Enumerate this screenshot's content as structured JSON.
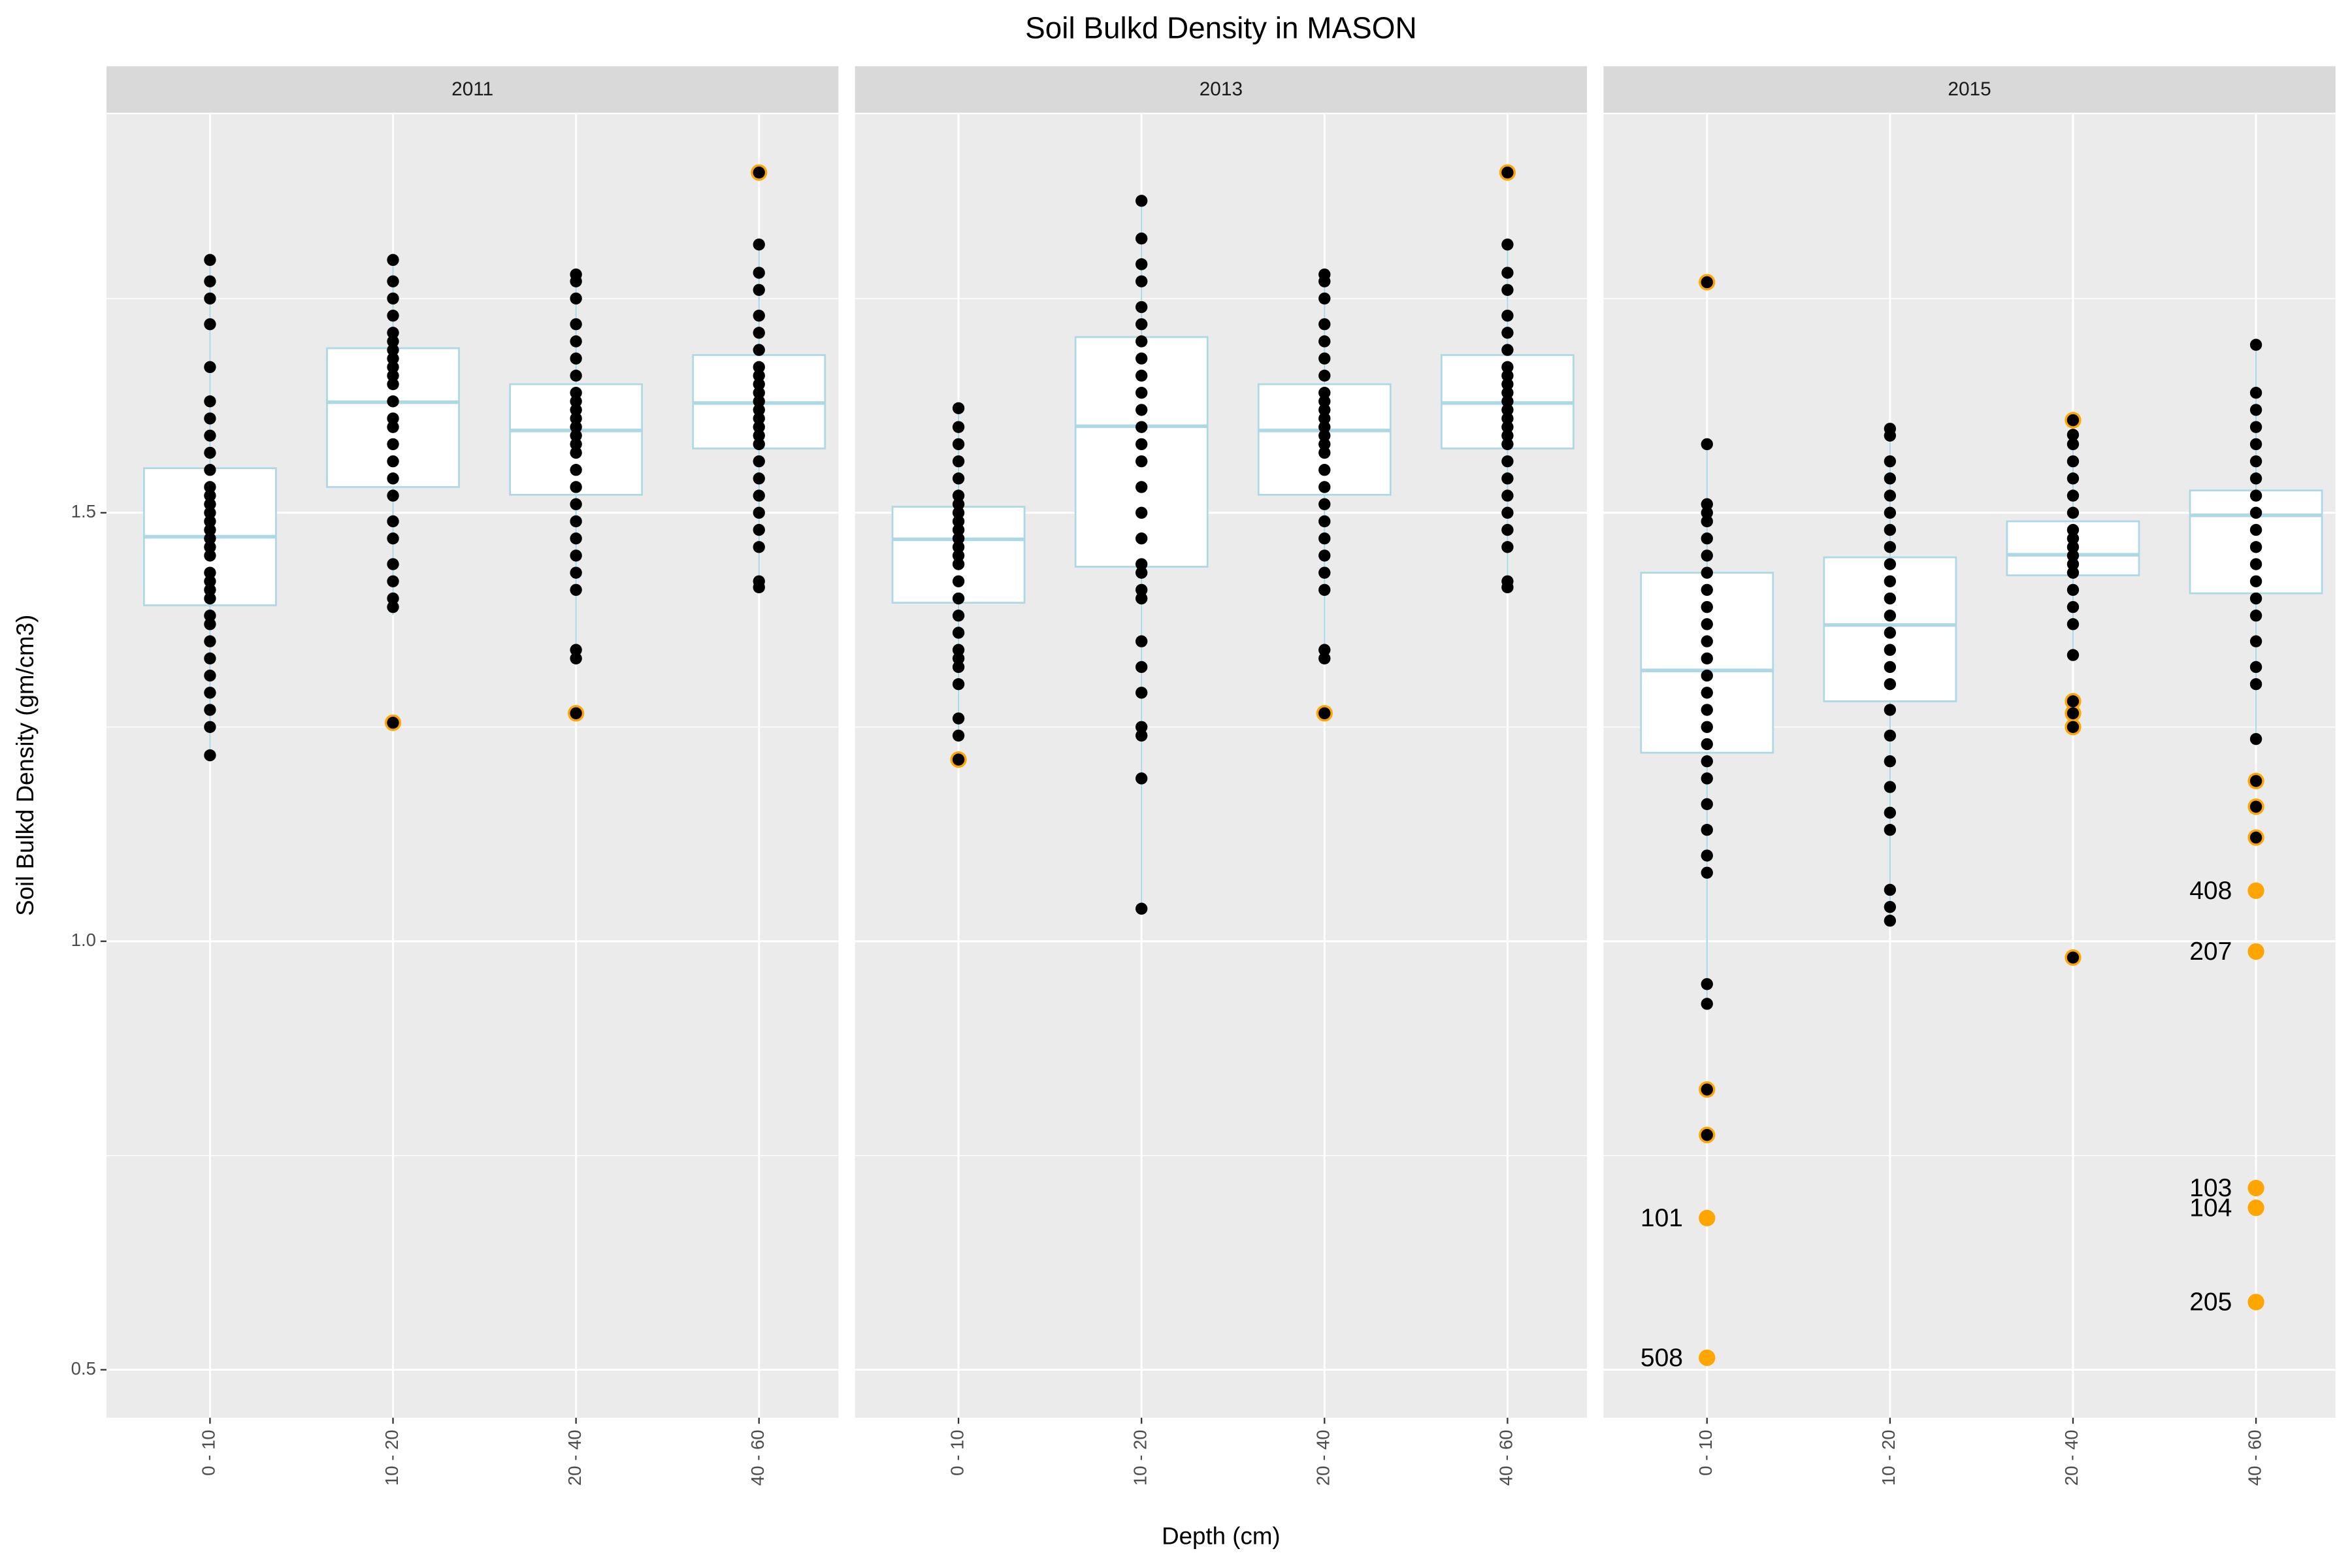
{
  "chart_data": {
    "type": "box",
    "title": "Soil Bulkd Density in MASON",
    "x_label": "Depth (cm)",
    "y_label": "Soil Bulkd Density (gm/cm3)",
    "categories": [
      "0 - 10",
      "10 - 20",
      "20 - 40",
      "40 - 60"
    ],
    "ylim": [
      0.444,
      1.965
    ],
    "yticks": [
      0.5,
      {
        "value": 1,
        "label": "1.0"
      },
      1.5
    ],
    "minor_grid": [
      0.75,
      1.25,
      1.75
    ],
    "grid": true,
    "box_color": "#add8e6",
    "point_color": "#000000",
    "outlier_color": "#ffa500",
    "facets": [
      {
        "title": "2011",
        "boxes": [
          {
            "low": 1.217,
            "q1": 1.392,
            "median": 1.472,
            "q3": 1.552,
            "high": 1.795,
            "outliers": [],
            "points": [
              1.217,
              1.25,
              1.27,
              1.29,
              1.31,
              1.33,
              1.35,
              1.37,
              1.38,
              1.4,
              1.41,
              1.42,
              1.43,
              1.45,
              1.46,
              1.47,
              1.48,
              1.49,
              1.5,
              1.51,
              1.52,
              1.53,
              1.55,
              1.57,
              1.59,
              1.61,
              1.63,
              1.67,
              1.72,
              1.75,
              1.77,
              1.795
            ]
          },
          {
            "low": 1.381,
            "q1": 1.53,
            "median": 1.629,
            "q3": 1.692,
            "high": 1.795,
            "outliers": [
              1.255
            ],
            "points": [
              1.255,
              1.39,
              1.4,
              1.42,
              1.44,
              1.47,
              1.49,
              1.52,
              1.54,
              1.56,
              1.58,
              1.6,
              1.61,
              1.63,
              1.65,
              1.66,
              1.67,
              1.68,
              1.69,
              1.7,
              1.71,
              1.73,
              1.75,
              1.77,
              1.795
            ]
          },
          {
            "low": 1.332,
            "q1": 1.521,
            "median": 1.596,
            "q3": 1.65,
            "high": 1.778,
            "outliers": [
              1.266
            ],
            "points": [
              1.266,
              1.33,
              1.34,
              1.41,
              1.43,
              1.45,
              1.47,
              1.49,
              1.51,
              1.53,
              1.55,
              1.57,
              1.58,
              1.59,
              1.6,
              1.61,
              1.62,
              1.63,
              1.64,
              1.66,
              1.68,
              1.7,
              1.72,
              1.75,
              1.77,
              1.778
            ]
          },
          {
            "low": 1.413,
            "q1": 1.575,
            "median": 1.628,
            "q3": 1.684,
            "high": 1.813,
            "outliers": [
              1.897
            ],
            "points": [
              1.413,
              1.42,
              1.46,
              1.48,
              1.5,
              1.52,
              1.54,
              1.56,
              1.58,
              1.59,
              1.6,
              1.61,
              1.62,
              1.63,
              1.64,
              1.65,
              1.66,
              1.67,
              1.69,
              1.71,
              1.73,
              1.76,
              1.78,
              1.813,
              1.897
            ]
          }
        ]
      },
      {
        "title": "2013",
        "boxes": [
          {
            "low": 1.24,
            "q1": 1.395,
            "median": 1.469,
            "q3": 1.507,
            "high": 1.622,
            "outliers": [
              1.212
            ],
            "points": [
              1.212,
              1.24,
              1.26,
              1.3,
              1.32,
              1.33,
              1.34,
              1.36,
              1.38,
              1.4,
              1.42,
              1.44,
              1.45,
              1.46,
              1.47,
              1.48,
              1.49,
              1.5,
              1.51,
              1.52,
              1.54,
              1.56,
              1.58,
              1.6,
              1.622
            ]
          },
          {
            "low": 1.038,
            "q1": 1.437,
            "median": 1.601,
            "q3": 1.705,
            "high": 1.864,
            "outliers": [],
            "points": [
              1.038,
              1.19,
              1.24,
              1.25,
              1.29,
              1.32,
              1.35,
              1.4,
              1.41,
              1.43,
              1.44,
              1.47,
              1.5,
              1.53,
              1.56,
              1.58,
              1.6,
              1.62,
              1.64,
              1.66,
              1.68,
              1.7,
              1.72,
              1.74,
              1.77,
              1.79,
              1.82,
              1.864
            ]
          },
          {
            "low": 1.332,
            "q1": 1.521,
            "median": 1.596,
            "q3": 1.65,
            "high": 1.778,
            "outliers": [
              1.266
            ],
            "points": [
              1.266,
              1.33,
              1.34,
              1.41,
              1.43,
              1.45,
              1.47,
              1.49,
              1.51,
              1.53,
              1.55,
              1.57,
              1.58,
              1.59,
              1.6,
              1.61,
              1.62,
              1.63,
              1.64,
              1.66,
              1.68,
              1.7,
              1.72,
              1.75,
              1.77,
              1.778
            ]
          },
          {
            "low": 1.413,
            "q1": 1.575,
            "median": 1.628,
            "q3": 1.684,
            "high": 1.813,
            "outliers": [
              1.897
            ],
            "points": [
              1.413,
              1.42,
              1.46,
              1.48,
              1.5,
              1.52,
              1.54,
              1.56,
              1.58,
              1.59,
              1.6,
              1.61,
              1.62,
              1.63,
              1.64,
              1.65,
              1.66,
              1.67,
              1.69,
              1.71,
              1.73,
              1.76,
              1.78,
              1.813,
              1.897
            ]
          }
        ]
      },
      {
        "title": "2015",
        "boxes": [
          {
            "low": 0.927,
            "q1": 1.22,
            "median": 1.316,
            "q3": 1.43,
            "high": 1.58,
            "outliers": [
              1.769,
              0.827,
              0.774,
              0.677,
              0.514
            ],
            "outlier_labels": [
              null,
              null,
              null,
              "101",
              "508"
            ],
            "points": [
              0.774,
              0.827,
              0.927,
              0.95,
              1.08,
              1.1,
              1.13,
              1.16,
              1.19,
              1.21,
              1.23,
              1.25,
              1.27,
              1.29,
              1.31,
              1.33,
              1.35,
              1.37,
              1.39,
              1.41,
              1.43,
              1.45,
              1.47,
              1.49,
              1.5,
              1.51,
              1.58,
              1.769
            ]
          },
          {
            "low": 1.024,
            "q1": 1.28,
            "median": 1.369,
            "q3": 1.448,
            "high": 1.598,
            "outliers": [],
            "points": [
              1.024,
              1.04,
              1.06,
              1.13,
              1.15,
              1.18,
              1.21,
              1.24,
              1.27,
              1.3,
              1.32,
              1.34,
              1.36,
              1.38,
              1.4,
              1.42,
              1.44,
              1.46,
              1.48,
              1.5,
              1.52,
              1.54,
              1.56,
              1.59,
              1.598
            ]
          },
          {
            "low": 1.334,
            "q1": 1.427,
            "median": 1.451,
            "q3": 1.49,
            "high": 1.591,
            "outliers": [
              1.608,
              1.28,
              1.266,
              1.25,
              0.981
            ],
            "points": [
              0.981,
              1.25,
              1.266,
              1.28,
              1.334,
              1.37,
              1.39,
              1.41,
              1.43,
              1.44,
              1.45,
              1.46,
              1.47,
              1.48,
              1.5,
              1.52,
              1.54,
              1.56,
              1.58,
              1.591,
              1.608
            ]
          },
          {
            "low": 1.236,
            "q1": 1.406,
            "median": 1.497,
            "q3": 1.526,
            "high": 1.696,
            "outliers": [
              1.187,
              1.157,
              1.121,
              1.059,
              0.988,
              0.712,
              0.689,
              0.579
            ],
            "outlier_labels": [
              null,
              null,
              null,
              "408",
              "207",
              "103",
              "104",
              "205"
            ],
            "points": [
              1.121,
              1.157,
              1.187,
              1.236,
              1.3,
              1.32,
              1.35,
              1.38,
              1.4,
              1.42,
              1.44,
              1.46,
              1.48,
              1.5,
              1.52,
              1.54,
              1.56,
              1.58,
              1.6,
              1.62,
              1.64,
              1.696
            ]
          }
        ]
      }
    ]
  }
}
